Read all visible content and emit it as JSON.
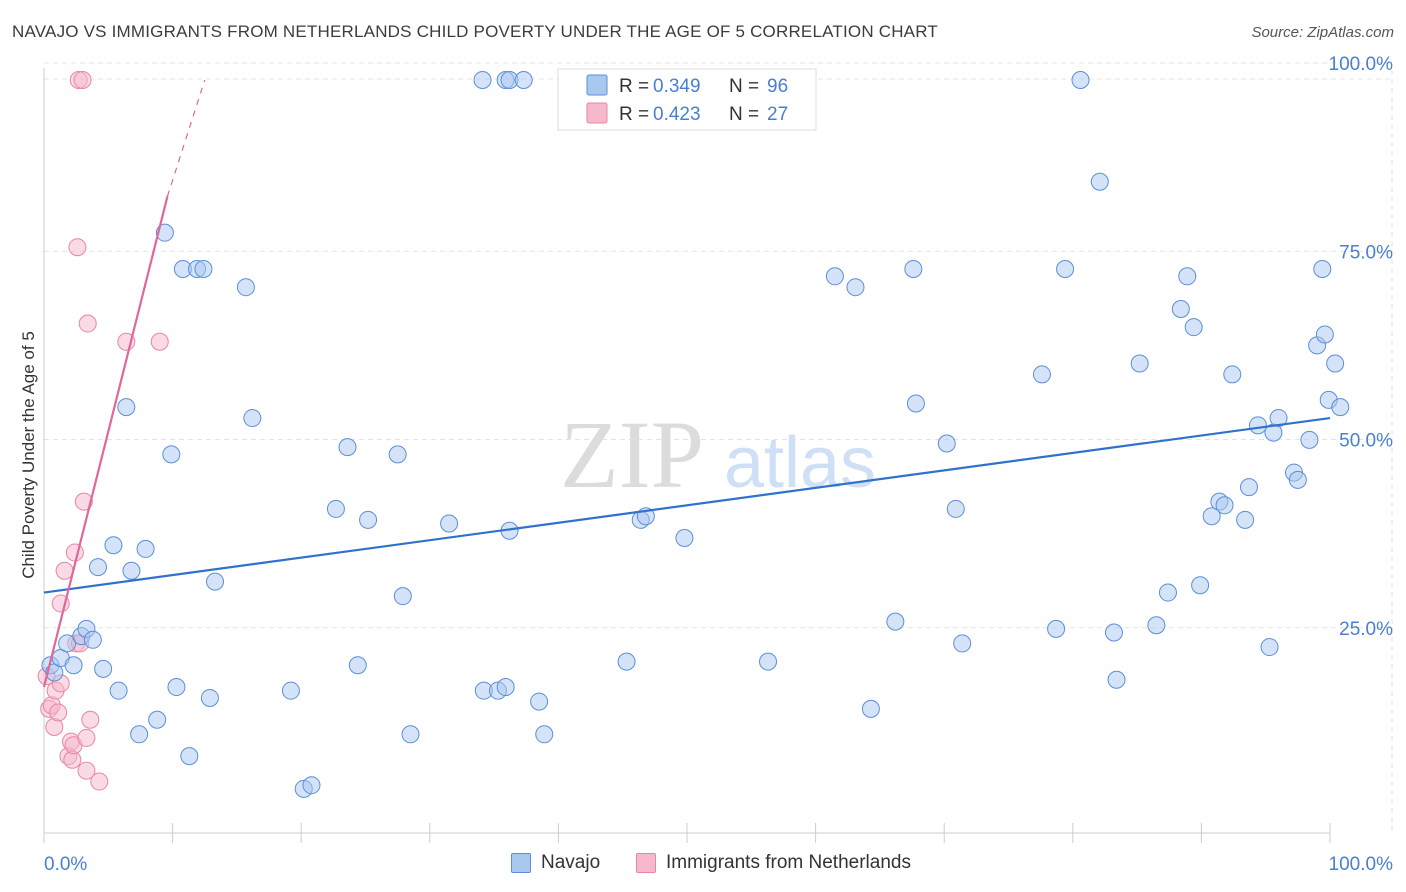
{
  "title": "NAVAJO VS IMMIGRANTS FROM NETHERLANDS CHILD POVERTY UNDER THE AGE OF 5 CORRELATION CHART",
  "source": "Source: ZipAtlas.com",
  "watermark": {
    "zip": "ZIP",
    "atlas": "atlas"
  },
  "colors": {
    "navajo_fill": "#a9c8f0",
    "navajo_stroke": "#5b8fd8",
    "navajo_line": "#2f72cc",
    "neth_fill": "#f6b8cb",
    "neth_stroke": "#e886a6",
    "neth_line": "#e0679a",
    "axis_text": "#4a7fd0"
  },
  "legend": {
    "series": [
      {
        "name": "Navajo",
        "r_label": "R =",
        "r_value": "0.349",
        "n_label": "N =",
        "n_value": "96"
      },
      {
        "name": "Immigrants from Netherlands",
        "r_label": "R =",
        "r_value": "0.423",
        "n_label": "N =",
        "n_value": "27"
      }
    ]
  },
  "chart_data": {
    "type": "scatter",
    "title": "NAVAJO VS IMMIGRANTS FROM NETHERLANDS CHILD POVERTY UNDER THE AGE OF 5 CORRELATION CHART",
    "xlabel": "",
    "ylabel": "Child Poverty Under the Age of 5",
    "xlim": [
      0,
      100
    ],
    "ylim": [
      0,
      100
    ],
    "x_tick_labels": [
      "0.0%",
      "100.0%"
    ],
    "y_tick_labels": [
      "25.0%",
      "50.0%",
      "75.0%",
      "100.0%"
    ],
    "y_tick_values": [
      25,
      50,
      75,
      100
    ],
    "grid": true,
    "legend_position": "top-center",
    "series": [
      {
        "name": "Navajo",
        "trend": {
          "x": [
            0,
            100
          ],
          "y": [
            29.5,
            53.5
          ]
        },
        "points": [
          [
            0.5,
            19.5
          ],
          [
            0.8,
            18.5
          ],
          [
            1.3,
            20.5
          ],
          [
            1.8,
            22.5
          ],
          [
            2.3,
            19.5
          ],
          [
            2.9,
            23.5
          ],
          [
            3.3,
            24.5
          ],
          [
            3.8,
            23
          ],
          [
            4.2,
            33
          ],
          [
            4.6,
            19
          ],
          [
            5.4,
            36
          ],
          [
            5.8,
            16
          ],
          [
            6.4,
            55
          ],
          [
            6.8,
            32.5
          ],
          [
            7.4,
            10
          ],
          [
            7.9,
            35.5
          ],
          [
            8.8,
            12
          ],
          [
            9.4,
            79
          ],
          [
            9.9,
            48.5
          ],
          [
            10.3,
            16.5
          ],
          [
            10.8,
            74
          ],
          [
            11.3,
            7
          ],
          [
            11.9,
            74
          ],
          [
            12.4,
            74
          ],
          [
            12.9,
            15
          ],
          [
            13.3,
            31
          ],
          [
            15.7,
            71.5
          ],
          [
            16.2,
            53.5
          ],
          [
            19.2,
            16
          ],
          [
            20.2,
            2.5
          ],
          [
            20.8,
            3
          ],
          [
            22.7,
            41
          ],
          [
            23.6,
            49.5
          ],
          [
            24.4,
            19.5
          ],
          [
            25.2,
            39.5
          ],
          [
            27.5,
            48.5
          ],
          [
            27.9,
            29
          ],
          [
            28.5,
            10
          ],
          [
            31.5,
            39
          ],
          [
            34.1,
            100
          ],
          [
            34.2,
            16
          ],
          [
            35.3,
            16
          ],
          [
            35.9,
            16.5
          ],
          [
            35.9,
            100
          ],
          [
            36.2,
            100
          ],
          [
            36.2,
            38
          ],
          [
            37.3,
            100
          ],
          [
            38.5,
            14.5
          ],
          [
            38.9,
            10
          ],
          [
            45.3,
            20
          ],
          [
            46.4,
            39.5
          ],
          [
            46.8,
            40
          ],
          [
            49.8,
            37
          ],
          [
            56.3,
            20
          ],
          [
            61.5,
            73
          ],
          [
            63.1,
            71.5
          ],
          [
            64.3,
            13.5
          ],
          [
            66.2,
            25.5
          ],
          [
            67.6,
            74
          ],
          [
            67.8,
            55.5
          ],
          [
            70.2,
            50
          ],
          [
            70.9,
            41
          ],
          [
            71.4,
            22.5
          ],
          [
            77.6,
            59.5
          ],
          [
            78.7,
            24.5
          ],
          [
            79.4,
            74
          ],
          [
            80.6,
            100
          ],
          [
            82.1,
            86
          ],
          [
            83.2,
            24
          ],
          [
            83.4,
            17.5
          ],
          [
            85.2,
            61
          ],
          [
            86.5,
            25
          ],
          [
            87.4,
            29.5
          ],
          [
            88.4,
            68.5
          ],
          [
            88.9,
            73
          ],
          [
            89.4,
            66
          ],
          [
            89.9,
            30.5
          ],
          [
            90.8,
            40
          ],
          [
            91.4,
            42
          ],
          [
            91.8,
            41.5
          ],
          [
            92.4,
            59.5
          ],
          [
            93.4,
            39.5
          ],
          [
            93.7,
            44
          ],
          [
            94.4,
            52.5
          ],
          [
            95.3,
            22
          ],
          [
            95.6,
            51.5
          ],
          [
            96,
            53.5
          ],
          [
            97.2,
            46
          ],
          [
            97.5,
            45
          ],
          [
            98.4,
            50.5
          ],
          [
            99,
            63.5
          ],
          [
            99.4,
            74
          ],
          [
            99.6,
            65
          ],
          [
            99.9,
            56
          ],
          [
            100.4,
            61
          ],
          [
            100.8,
            55
          ]
        ]
      },
      {
        "name": "Immigrants from Netherlands",
        "trend": {
          "x": [
            0,
            9.6
          ],
          "y": [
            16.5,
            84
          ]
        },
        "trend_extension": {
          "x": [
            9.6,
            12.5
          ],
          "y": [
            84,
            100
          ]
        },
        "points": [
          [
            0.2,
            18
          ],
          [
            0.4,
            13.5
          ],
          [
            0.6,
            14
          ],
          [
            0.8,
            11
          ],
          [
            0.9,
            16
          ],
          [
            1.1,
            13
          ],
          [
            1.3,
            17
          ],
          [
            1.3,
            28
          ],
          [
            1.6,
            32.5
          ],
          [
            1.9,
            7
          ],
          [
            2.1,
            9
          ],
          [
            2.2,
            6.5
          ],
          [
            2.3,
            8.5
          ],
          [
            2.4,
            35
          ],
          [
            2.5,
            22.5
          ],
          [
            2.6,
            77
          ],
          [
            2.7,
            100
          ],
          [
            2.8,
            22.5
          ],
          [
            3.0,
            100
          ],
          [
            3.1,
            42
          ],
          [
            3.3,
            9.5
          ],
          [
            3.3,
            5
          ],
          [
            3.4,
            66.5
          ],
          [
            3.6,
            12
          ],
          [
            4.3,
            3.5
          ],
          [
            6.4,
            64
          ],
          [
            9.0,
            64
          ]
        ]
      }
    ]
  }
}
